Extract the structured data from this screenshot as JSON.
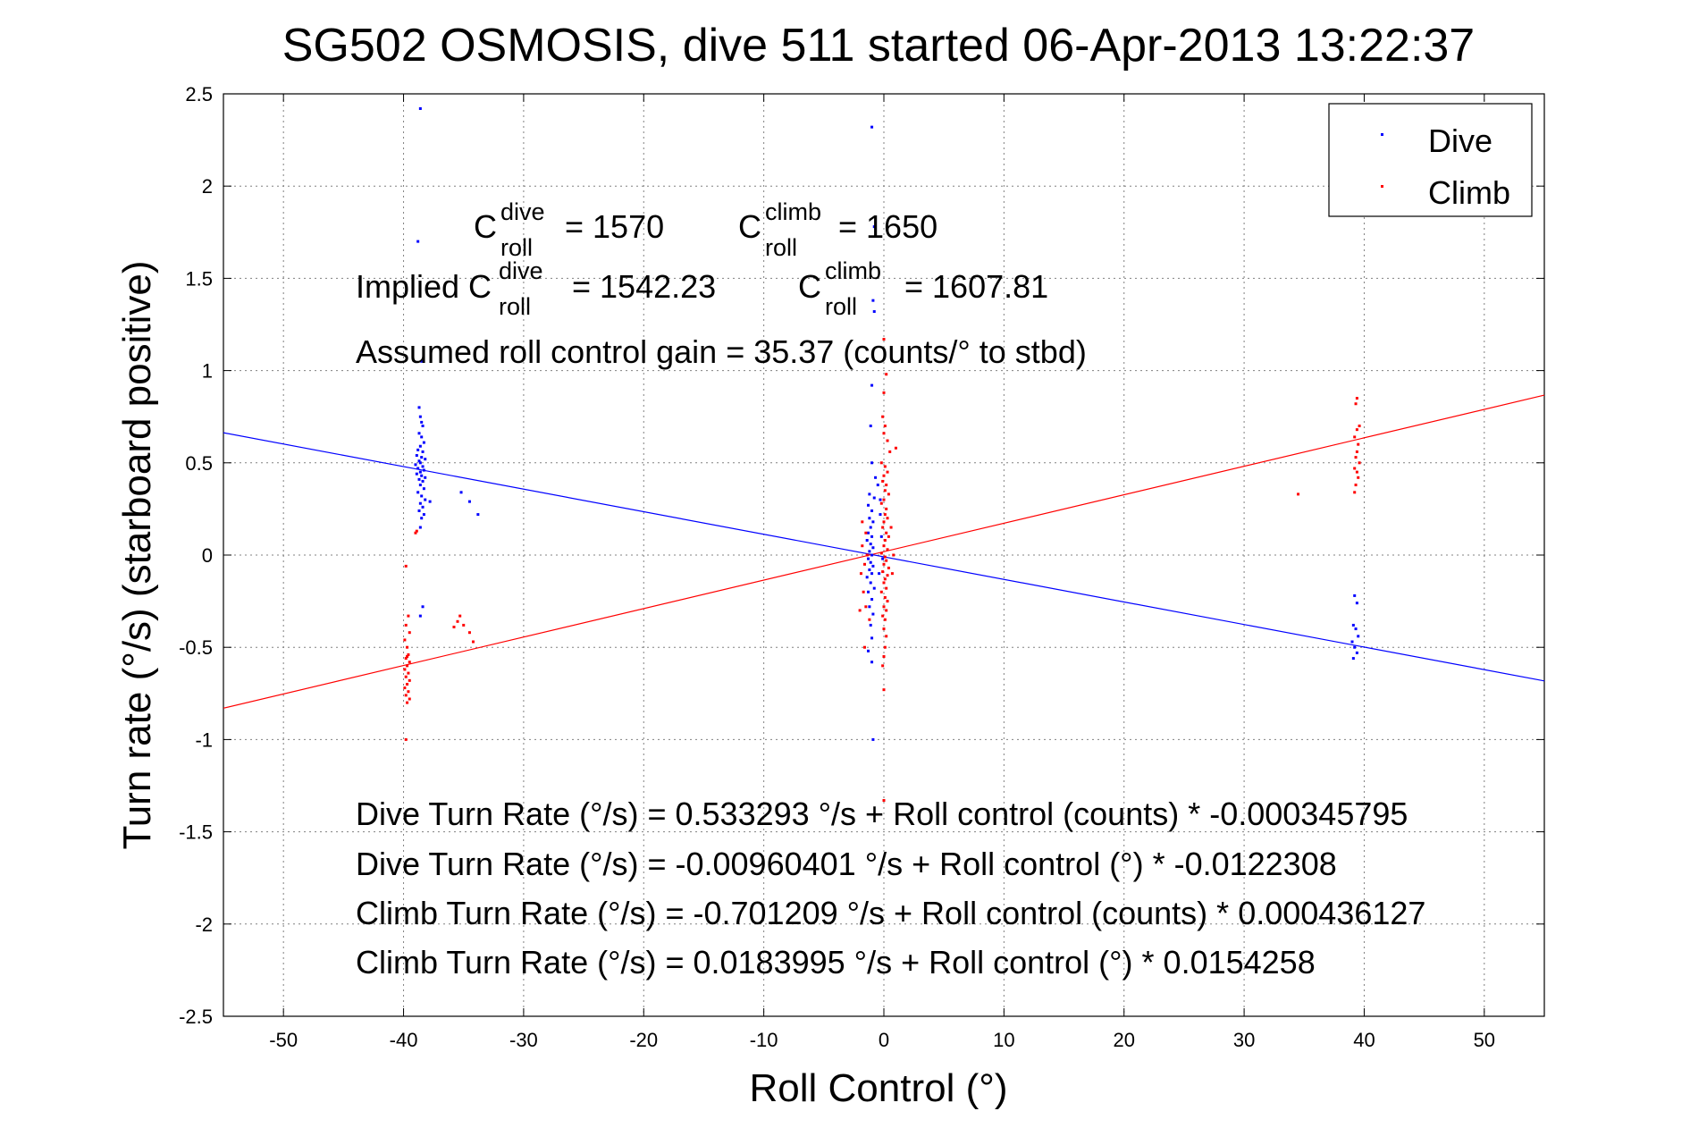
{
  "chart_data": {
    "type": "scatter",
    "title": "SG502 OSMOSIS, dive 511 started 06-Apr-2013 13:22:37",
    "xlabel": "Roll Control (°)",
    "ylabel": "Turn rate (°/s)  (starboard positive)",
    "xlim": [
      -55,
      55
    ],
    "ylim": [
      -2.5,
      2.5
    ],
    "xticks": [
      "-50",
      "-40",
      "-30",
      "-20",
      "-10",
      "0",
      "10",
      "20",
      "30",
      "40",
      "50"
    ],
    "yticks": [
      "2.5",
      "2",
      "1.5",
      "1",
      "0.5",
      "0",
      "-0.5",
      "-1",
      "-1.5",
      "-2",
      "-2.5"
    ],
    "grid": true,
    "legend_position": "top-right",
    "legend": [
      {
        "name": "Dive",
        "color": "#0000ff"
      },
      {
        "name": "Climb",
        "color": "#ff0000"
      }
    ],
    "annotations": {
      "c_dive": {
        "base": "C",
        "sup": "dive",
        "sub": "roll",
        "value": "= 1570"
      },
      "c_climb": {
        "base": "C",
        "sup": "climb",
        "sub": "roll",
        "value": "= 1650"
      },
      "implied_prefix": "Implied C",
      "implied_dive": {
        "sup": "dive",
        "sub": "roll",
        "value": "= 1542.23"
      },
      "implied_climb": {
        "base": "C",
        "sup": "climb",
        "sub": "roll",
        "value": "= 1607.81"
      },
      "gain": "Assumed roll control gain = 35.37 (counts/° to stbd)",
      "eq1": "Dive Turn Rate (°/s) = 0.533293 °/s + Roll control (counts) * -0.000345795",
      "eq2": "Dive Turn Rate (°/s) = -0.00960401 °/s + Roll control (°) * -0.0122308",
      "eq3": "Climb Turn Rate (°/s) = -0.701209 °/s + Roll control (counts) * 0.000436127",
      "eq4": "Climb Turn Rate (°/s) = 0.0183995 °/s + Roll control (°) * 0.0154258"
    },
    "series": [
      {
        "name": "Dive",
        "color": "#0000ff",
        "fit": {
          "intercept": -0.00960401,
          "slope": -0.0122308
        },
        "points": [
          [
            -38.6,
            2.42
          ],
          [
            -38.8,
            1.7
          ],
          [
            -38.5,
            1.05
          ],
          [
            -38.7,
            0.8
          ],
          [
            -38.6,
            0.75
          ],
          [
            -38.5,
            0.72
          ],
          [
            -38.4,
            0.7
          ],
          [
            -38.7,
            0.66
          ],
          [
            -38.5,
            0.64
          ],
          [
            -38.3,
            0.61
          ],
          [
            -38.6,
            0.59
          ],
          [
            -38.8,
            0.57
          ],
          [
            -38.4,
            0.56
          ],
          [
            -38.9,
            0.54
          ],
          [
            -38.5,
            0.53
          ],
          [
            -38.2,
            0.52
          ],
          [
            -38.7,
            0.51
          ],
          [
            -38.6,
            0.5
          ],
          [
            -39.0,
            0.49
          ],
          [
            -38.4,
            0.48
          ],
          [
            -38.8,
            0.47
          ],
          [
            -38.3,
            0.46
          ],
          [
            -38.6,
            0.45
          ],
          [
            -38.9,
            0.44
          ],
          [
            -38.5,
            0.43
          ],
          [
            -38.2,
            0.42
          ],
          [
            -38.7,
            0.41
          ],
          [
            -38.4,
            0.4
          ],
          [
            -38.6,
            0.38
          ],
          [
            -38.3,
            0.36
          ],
          [
            -38.8,
            0.34
          ],
          [
            -38.5,
            0.32
          ],
          [
            -38.2,
            0.3
          ],
          [
            -38.6,
            0.28
          ],
          [
            -38.4,
            0.26
          ],
          [
            -38.7,
            0.24
          ],
          [
            -38.3,
            0.22
          ],
          [
            -38.5,
            0.2
          ],
          [
            -38.6,
            0.15
          ],
          [
            -37.8,
            0.29
          ],
          [
            -35.2,
            0.34
          ],
          [
            -34.5,
            0.29
          ],
          [
            -33.8,
            0.22
          ],
          [
            -38.4,
            -0.28
          ],
          [
            -38.6,
            -0.33
          ],
          [
            -1.0,
            2.32
          ],
          [
            -0.8,
            1.78
          ],
          [
            -0.9,
            1.38
          ],
          [
            -0.8,
            1.32
          ],
          [
            -1.0,
            0.92
          ],
          [
            -1.1,
            0.7
          ],
          [
            -1.0,
            0.5
          ],
          [
            -0.7,
            0.42
          ],
          [
            -0.5,
            0.38
          ],
          [
            -1.2,
            0.33
          ],
          [
            -0.8,
            0.31
          ],
          [
            -1.3,
            0.27
          ],
          [
            -1.0,
            0.24
          ],
          [
            -1.2,
            0.2
          ],
          [
            -0.9,
            0.18
          ],
          [
            -1.1,
            0.15
          ],
          [
            -1.3,
            0.12
          ],
          [
            -1.0,
            0.1
          ],
          [
            -1.4,
            0.08
          ],
          [
            -1.1,
            0.06
          ],
          [
            -0.9,
            0.04
          ],
          [
            -1.2,
            0.02
          ],
          [
            -1.0,
            0.0
          ],
          [
            -1.3,
            -0.02
          ],
          [
            -1.1,
            -0.04
          ],
          [
            -0.9,
            -0.06
          ],
          [
            -1.2,
            -0.08
          ],
          [
            -1.0,
            -0.1
          ],
          [
            -1.4,
            -0.12
          ],
          [
            -1.1,
            -0.15
          ],
          [
            -0.8,
            -0.18
          ],
          [
            -1.3,
            -0.2
          ],
          [
            -1.0,
            -0.24
          ],
          [
            -1.2,
            -0.28
          ],
          [
            -0.9,
            -0.32
          ],
          [
            -1.1,
            -0.38
          ],
          [
            -1.0,
            -0.45
          ],
          [
            -1.3,
            -0.52
          ],
          [
            -1.0,
            -0.58
          ],
          [
            -0.9,
            -1.0
          ],
          [
            -0.3,
            0.22
          ],
          [
            -0.2,
            0.1
          ],
          [
            -0.1,
            -0.02
          ],
          [
            -0.4,
            -0.1
          ],
          [
            -0.3,
            0.3
          ],
          [
            39.2,
            -0.22
          ],
          [
            39.4,
            -0.26
          ],
          [
            39.1,
            -0.38
          ],
          [
            39.3,
            -0.4
          ],
          [
            39.5,
            -0.44
          ],
          [
            39.0,
            -0.47
          ],
          [
            39.2,
            -0.5
          ],
          [
            39.4,
            -0.53
          ],
          [
            39.1,
            -0.56
          ]
        ]
      },
      {
        "name": "Climb",
        "color": "#ff0000",
        "fit": {
          "intercept": 0.0183995,
          "slope": 0.0154258
        },
        "points": [
          [
            -39.8,
            -0.06
          ],
          [
            -38.9,
            0.13
          ],
          [
            -39.0,
            0.12
          ],
          [
            -39.6,
            -0.33
          ],
          [
            -39.8,
            -0.38
          ],
          [
            -39.5,
            -0.42
          ],
          [
            -39.9,
            -0.46
          ],
          [
            -39.7,
            -0.5
          ],
          [
            -39.6,
            -0.54
          ],
          [
            -39.8,
            -0.56
          ],
          [
            -39.5,
            -0.58
          ],
          [
            -39.7,
            -0.6
          ],
          [
            -39.9,
            -0.62
          ],
          [
            -39.6,
            -0.64
          ],
          [
            -39.8,
            -0.66
          ],
          [
            -39.5,
            -0.68
          ],
          [
            -39.7,
            -0.7
          ],
          [
            -39.9,
            -0.72
          ],
          [
            -39.6,
            -0.74
          ],
          [
            -39.8,
            -0.76
          ],
          [
            -39.5,
            -0.78
          ],
          [
            -39.7,
            -0.8
          ],
          [
            -39.8,
            -1.0
          ],
          [
            -39.7,
            -0.55
          ],
          [
            -35.3,
            -0.33
          ],
          [
            -35.5,
            -0.36
          ],
          [
            -35.8,
            -0.39
          ],
          [
            -34.5,
            -0.42
          ],
          [
            -34.2,
            -0.47
          ],
          [
            -35.0,
            -0.38
          ],
          [
            0.0,
            1.17
          ],
          [
            0.2,
            0.98
          ],
          [
            0.0,
            0.88
          ],
          [
            -0.1,
            0.75
          ],
          [
            0.1,
            0.7
          ],
          [
            0.0,
            0.66
          ],
          [
            0.3,
            0.62
          ],
          [
            1.0,
            0.58
          ],
          [
            0.5,
            0.56
          ],
          [
            -0.2,
            0.5
          ],
          [
            0.1,
            0.48
          ],
          [
            0.3,
            0.45
          ],
          [
            0.0,
            0.43
          ],
          [
            -0.1,
            0.4
          ],
          [
            0.2,
            0.38
          ],
          [
            0.1,
            0.35
          ],
          [
            0.4,
            0.33
          ],
          [
            0.0,
            0.3
          ],
          [
            -0.2,
            0.28
          ],
          [
            0.2,
            0.25
          ],
          [
            0.1,
            0.22
          ],
          [
            0.3,
            0.2
          ],
          [
            0.0,
            0.18
          ],
          [
            -0.1,
            0.15
          ],
          [
            0.2,
            0.12
          ],
          [
            0.4,
            0.1
          ],
          [
            0.1,
            0.08
          ],
          [
            0.0,
            0.05
          ],
          [
            0.3,
            0.03
          ],
          [
            -0.2,
            0.01
          ],
          [
            0.1,
            -0.01
          ],
          [
            0.2,
            -0.03
          ],
          [
            0.0,
            -0.05
          ],
          [
            0.4,
            -0.07
          ],
          [
            -0.1,
            -0.09
          ],
          [
            0.3,
            -0.11
          ],
          [
            0.1,
            -0.13
          ],
          [
            0.0,
            -0.15
          ],
          [
            0.2,
            -0.18
          ],
          [
            -0.2,
            -0.2
          ],
          [
            0.1,
            -0.23
          ],
          [
            0.3,
            -0.25
          ],
          [
            0.0,
            -0.28
          ],
          [
            0.2,
            -0.3
          ],
          [
            -0.1,
            -0.33
          ],
          [
            0.1,
            -0.35
          ],
          [
            0.0,
            -0.4
          ],
          [
            0.2,
            -0.44
          ],
          [
            0.1,
            -0.5
          ],
          [
            0.0,
            -0.55
          ],
          [
            -0.1,
            -0.6
          ],
          [
            0.0,
            -0.73
          ],
          [
            0.0,
            -1.33
          ],
          [
            -1.5,
            0.12
          ],
          [
            -1.8,
            0.05
          ],
          [
            -1.6,
            -0.05
          ],
          [
            -1.9,
            -0.1
          ],
          [
            -1.7,
            -0.2
          ],
          [
            -1.5,
            -0.28
          ],
          [
            -2.0,
            -0.3
          ],
          [
            -1.6,
            -0.5
          ],
          [
            -1.8,
            0.18
          ],
          [
            -1.4,
            0.0
          ],
          [
            -1.2,
            -0.35
          ],
          [
            0.6,
            0.15
          ],
          [
            0.7,
            -0.1
          ],
          [
            0.8,
            0.0
          ],
          [
            39.4,
            0.85
          ],
          [
            39.3,
            0.82
          ],
          [
            39.6,
            0.7
          ],
          [
            39.4,
            0.68
          ],
          [
            39.2,
            0.64
          ],
          [
            39.5,
            0.6
          ],
          [
            39.4,
            0.56
          ],
          [
            39.3,
            0.53
          ],
          [
            39.6,
            0.5
          ],
          [
            39.2,
            0.47
          ],
          [
            39.4,
            0.45
          ],
          [
            39.5,
            0.42
          ],
          [
            39.3,
            0.38
          ],
          [
            39.2,
            0.34
          ],
          [
            34.5,
            0.33
          ]
        ]
      }
    ]
  }
}
